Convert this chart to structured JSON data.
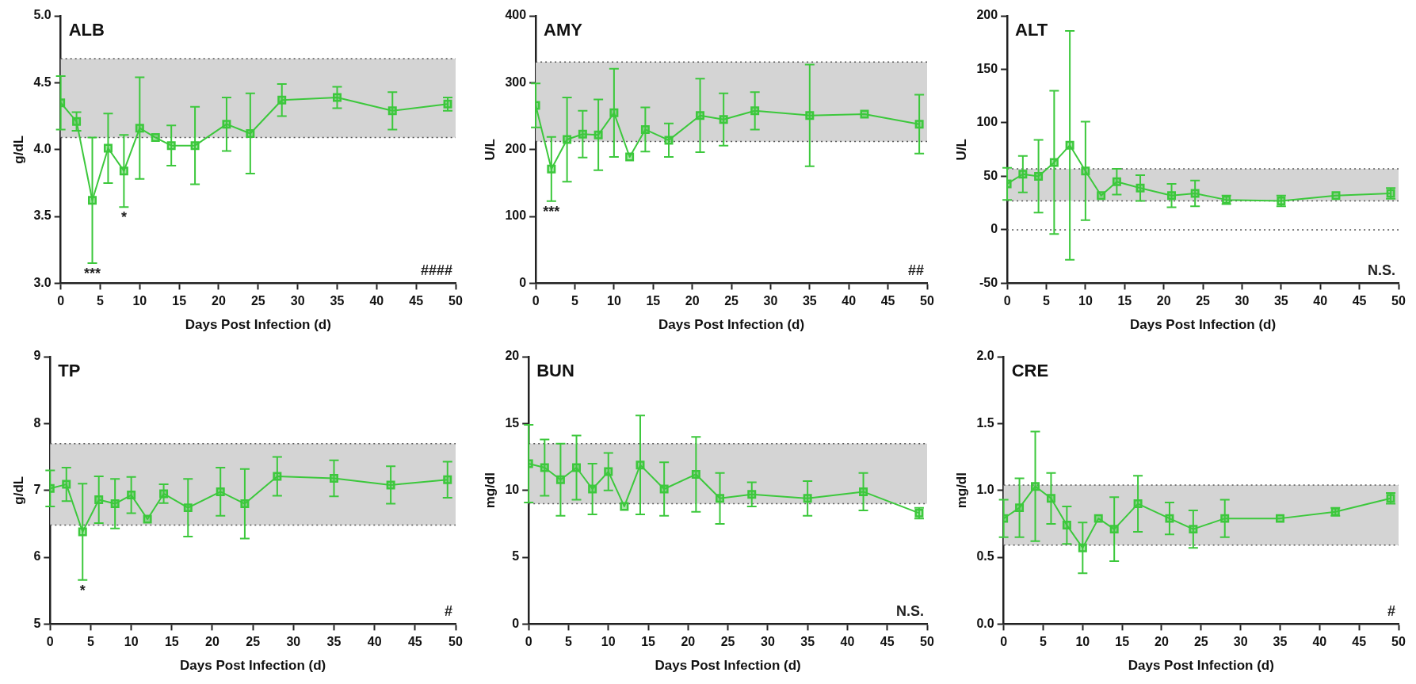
{
  "chart_data": [
    {
      "type": "line",
      "title": "ALB",
      "xlabel": "Days Post Infection (d)",
      "ylabel": "g/dL",
      "x": [
        0,
        2,
        4,
        6,
        8,
        10,
        12,
        14,
        17,
        21,
        24,
        28,
        35,
        42,
        49
      ],
      "xlim": [
        0,
        50
      ],
      "xticks": [
        0,
        5,
        10,
        15,
        20,
        25,
        30,
        35,
        40,
        45,
        50
      ],
      "ylim": [
        3.0,
        5.0
      ],
      "yticks": [
        {
          "value": 3.0,
          "label": "3.0"
        },
        {
          "value": 3.5,
          "label": "3.5"
        },
        {
          "value": 4.0,
          "label": "4.0"
        },
        {
          "value": 4.5,
          "label": "4.5"
        },
        {
          "value": 5.0,
          "label": "5.0"
        }
      ],
      "grid": false,
      "legend": false,
      "marker": "square",
      "line_style": "solid",
      "series": [
        {
          "color": "#3cc83c",
          "values": [
            4.35,
            4.21,
            3.62,
            4.01,
            3.84,
            4.16,
            4.09,
            4.03,
            4.03,
            4.19,
            4.12,
            4.37,
            4.39,
            4.29,
            4.34
          ],
          "errors": [
            0.2,
            0.07,
            0.47,
            0.26,
            0.27,
            0.38,
            null,
            0.15,
            0.29,
            0.2,
            0.3,
            0.12,
            0.08,
            0.14,
            0.05
          ]
        }
      ],
      "bands": [
        {
          "axis": "y",
          "from": 4.09,
          "to": 4.68,
          "color": "#d4d4d4"
        }
      ],
      "ref_lines": [
        {
          "axis": "y",
          "value": 4.09,
          "line_style": "dotted"
        },
        {
          "axis": "y",
          "value": 4.68,
          "line_style": "dotted"
        }
      ],
      "annotations": [
        {
          "text": "***",
          "x": 4,
          "y": 3.15
        },
        {
          "text": "*",
          "x": 8,
          "y": 3.57
        },
        "####"
      ]
    },
    {
      "type": "line",
      "title": "AMY",
      "xlabel": "Days Post Infection (d)",
      "ylabel": "U/L",
      "x": [
        0,
        2,
        4,
        6,
        8,
        10,
        12,
        14,
        17,
        21,
        24,
        28,
        35,
        42,
        49
      ],
      "xlim": [
        0,
        50
      ],
      "xticks": [
        0,
        5,
        10,
        15,
        20,
        25,
        30,
        35,
        40,
        45,
        50
      ],
      "ylim": [
        0,
        400
      ],
      "yticks": [
        0,
        100,
        200,
        300,
        400
      ],
      "grid": false,
      "legend": false,
      "marker": "square",
      "line_style": "solid",
      "series": [
        {
          "color": "#3cc83c",
          "values": [
            266,
            171,
            215,
            223,
            222,
            255,
            189,
            230,
            214,
            251,
            245,
            258,
            251,
            253,
            238
          ],
          "errors": [
            33,
            48,
            63,
            35,
            53,
            66,
            null,
            33,
            25,
            55,
            39,
            28,
            76,
            null,
            44
          ]
        }
      ],
      "bands": [
        {
          "axis": "y",
          "from": 212,
          "to": 331,
          "color": "#d4d4d4"
        }
      ],
      "ref_lines": [
        {
          "axis": "y",
          "value": 212,
          "line_style": "dotted"
        },
        {
          "axis": "y",
          "value": 331,
          "line_style": "dotted"
        }
      ],
      "annotations": [
        {
          "text": "***",
          "x": 2,
          "y": 123
        },
        "##"
      ]
    },
    {
      "type": "line",
      "title": "ALT",
      "xlabel": "Days Post Infection (d)",
      "ylabel": "U/L",
      "x": [
        0,
        2,
        4,
        6,
        8,
        10,
        12,
        14,
        17,
        21,
        24,
        28,
        35,
        42,
        49
      ],
      "xlim": [
        0,
        50
      ],
      "xticks": [
        0,
        5,
        10,
        15,
        20,
        25,
        30,
        35,
        40,
        45,
        50
      ],
      "ylim": [
        -50,
        200
      ],
      "yticks": [
        -50,
        0,
        50,
        100,
        150,
        200
      ],
      "grid": false,
      "legend": false,
      "marker": "square",
      "line_style": "solid",
      "series": [
        {
          "color": "#3cc83c",
          "values": [
            43,
            52,
            50,
            63,
            79,
            55,
            32,
            45,
            39,
            32,
            34,
            28,
            27,
            32,
            34
          ],
          "errors": [
            15,
            17,
            34,
            67,
            107,
            46,
            null,
            12,
            12,
            11,
            12,
            4,
            5,
            null,
            5
          ]
        }
      ],
      "bands": [
        {
          "axis": "y",
          "from": 27,
          "to": 57,
          "color": "#d4d4d4"
        }
      ],
      "ref_lines": [
        {
          "axis": "y",
          "value": 0,
          "line_style": "dotted"
        },
        {
          "axis": "y",
          "value": 27,
          "line_style": "dotted"
        },
        {
          "axis": "y",
          "value": 57,
          "line_style": "dotted"
        }
      ],
      "annotations": [
        "N.S."
      ]
    },
    {
      "type": "line",
      "title": "TP",
      "xlabel": "Days Post Infection (d)",
      "ylabel": "g/dL",
      "x": [
        0,
        2,
        4,
        6,
        8,
        10,
        12,
        14,
        17,
        21,
        24,
        28,
        35,
        42,
        49
      ],
      "xlim": [
        0,
        50
      ],
      "xticks": [
        0,
        5,
        10,
        15,
        20,
        25,
        30,
        35,
        40,
        45,
        50
      ],
      "ylim": [
        5,
        9
      ],
      "yticks": [
        5,
        6,
        7,
        8,
        9
      ],
      "grid": false,
      "legend": false,
      "marker": "square",
      "line_style": "solid",
      "series": [
        {
          "color": "#3cc83c",
          "values": [
            7.03,
            7.09,
            6.38,
            6.86,
            6.8,
            6.93,
            6.57,
            6.95,
            6.74,
            6.98,
            6.8,
            7.21,
            7.18,
            7.08,
            7.16
          ],
          "errors": [
            0.27,
            0.25,
            0.72,
            0.35,
            0.37,
            0.27,
            null,
            0.14,
            0.43,
            0.36,
            0.52,
            0.29,
            0.27,
            0.28,
            0.27
          ]
        }
      ],
      "bands": [
        {
          "axis": "y",
          "from": 6.48,
          "to": 7.7,
          "color": "#d4d4d4"
        }
      ],
      "ref_lines": [
        {
          "axis": "y",
          "value": 6.48,
          "line_style": "dotted"
        },
        {
          "axis": "y",
          "value": 7.7,
          "line_style": "dotted"
        }
      ],
      "annotations": [
        {
          "text": "*",
          "x": 4,
          "y": 5.66
        },
        "#"
      ]
    },
    {
      "type": "line",
      "title": "BUN",
      "xlabel": "Days Post Infection (d)",
      "ylabel": "mg/dl",
      "x": [
        0,
        2,
        4,
        6,
        8,
        10,
        12,
        14,
        17,
        21,
        24,
        28,
        35,
        42,
        49
      ],
      "xlim": [
        0,
        50
      ],
      "xticks": [
        0,
        5,
        10,
        15,
        20,
        25,
        30,
        35,
        40,
        45,
        50
      ],
      "ylim": [
        0,
        20
      ],
      "yticks": [
        0,
        5,
        10,
        15,
        20
      ],
      "grid": false,
      "legend": false,
      "marker": "square",
      "line_style": "solid",
      "series": [
        {
          "color": "#3cc83c",
          "values": [
            12.0,
            11.7,
            10.8,
            11.7,
            10.1,
            11.4,
            8.8,
            11.9,
            10.1,
            11.2,
            9.4,
            9.7,
            9.4,
            9.9,
            8.3
          ],
          "errors": [
            2.9,
            2.1,
            2.7,
            2.4,
            1.9,
            1.4,
            null,
            3.7,
            2.0,
            2.8,
            1.9,
            0.9,
            1.3,
            1.4,
            0.4
          ]
        }
      ],
      "bands": [
        {
          "axis": "y",
          "from": 9.0,
          "to": 13.5,
          "color": "#d4d4d4"
        }
      ],
      "ref_lines": [
        {
          "axis": "y",
          "value": 9.0,
          "line_style": "dotted"
        },
        {
          "axis": "y",
          "value": 13.5,
          "line_style": "dotted"
        }
      ],
      "annotations": [
        "N.S."
      ]
    },
    {
      "type": "line",
      "title": "CRE",
      "xlabel": "Days Post Infection (d)",
      "ylabel": "mg/dl",
      "x": [
        0,
        2,
        4,
        6,
        8,
        10,
        12,
        14,
        17,
        21,
        24,
        28,
        35,
        42,
        49
      ],
      "xlim": [
        0,
        50
      ],
      "xticks": [
        0,
        5,
        10,
        15,
        20,
        25,
        30,
        35,
        40,
        45,
        50
      ],
      "ylim": [
        0.0,
        2.0
      ],
      "yticks": [
        {
          "value": 0,
          "label": "0.0"
        },
        {
          "value": 0.5,
          "label": "0.5"
        },
        {
          "value": 1,
          "label": "1.0"
        },
        {
          "value": 1.5,
          "label": "1.5"
        },
        {
          "value": 2,
          "label": "2.0"
        }
      ],
      "grid": false,
      "legend": false,
      "marker": "square",
      "line_style": "solid",
      "series": [
        {
          "color": "#3cc83c",
          "values": [
            0.79,
            0.87,
            1.03,
            0.94,
            0.74,
            0.57,
            0.79,
            0.71,
            0.9,
            0.79,
            0.71,
            0.79,
            0.79,
            0.84,
            0.94
          ],
          "errors": [
            0.14,
            0.22,
            0.41,
            0.19,
            0.14,
            0.19,
            null,
            0.24,
            0.21,
            0.12,
            0.14,
            0.14,
            null,
            0.03,
            0.04
          ]
        }
      ],
      "bands": [
        {
          "axis": "y",
          "from": 0.59,
          "to": 1.04,
          "color": "#d4d4d4"
        }
      ],
      "ref_lines": [
        {
          "axis": "y",
          "value": 0.59,
          "line_style": "dotted"
        },
        {
          "axis": "y",
          "value": 1.04,
          "line_style": "dotted"
        }
      ],
      "annotations": [
        "#"
      ]
    }
  ]
}
